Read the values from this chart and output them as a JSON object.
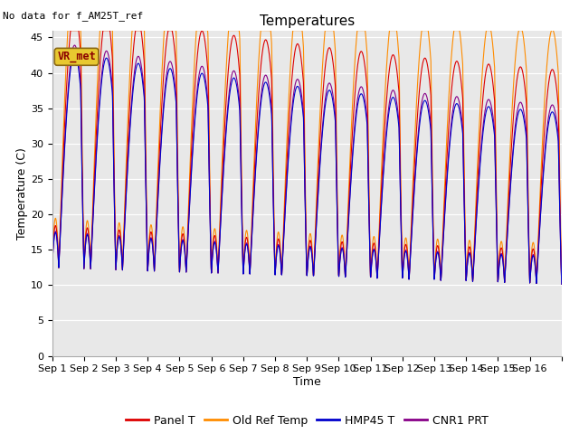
{
  "title": "Temperatures",
  "xlabel": "Time",
  "ylabel": "Temperature (C)",
  "ylim": [
    0,
    46
  ],
  "yticks": [
    0,
    5,
    10,
    15,
    20,
    25,
    30,
    35,
    40,
    45
  ],
  "plot_bg": "#e8e8e8",
  "fig_bg": "#ffffff",
  "annot_text": "No data for f_AM25T_ref",
  "vr_met_text": "VR_met",
  "legend_labels": [
    "Panel T",
    "Old Ref Temp",
    "HMP45 T",
    "CNR1 PRT"
  ],
  "line_colors": {
    "panel_t": "#dd0000",
    "old_ref": "#ff8c00",
    "hmp45": "#0000cc",
    "cnr1": "#880088"
  },
  "tick_labels": [
    "Sep 1",
    "Sep 2",
    "Sep 3",
    "Sep 4",
    "Sep 5",
    "Sep 6",
    "Sep 7",
    "Sep 8",
    "Sep 9",
    "Sep 10",
    "Sep 11",
    "Sep 12",
    "Sep 13",
    "Sep 14",
    "Sep 15",
    "Sep 16"
  ],
  "n_days": 16,
  "title_fontsize": 11,
  "label_fontsize": 9,
  "tick_fontsize": 8,
  "legend_fontsize": 9
}
